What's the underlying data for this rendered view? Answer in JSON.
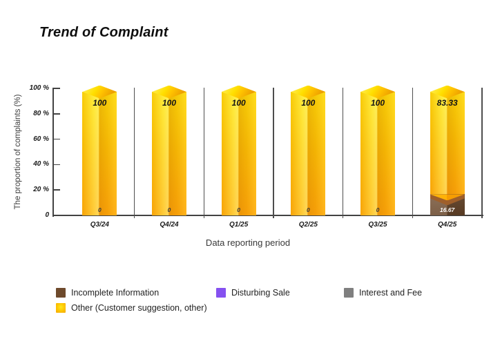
{
  "title": "Trend of Complaint",
  "chart_data": {
    "type": "bar",
    "variant": "3d-stacked-column",
    "title": "Trend of Complaint",
    "xlabel": "Data reporting period",
    "ylabel": "The proportion of complaints (%)",
    "ylim": [
      0,
      100
    ],
    "yticks": [
      100,
      80,
      60,
      40,
      20,
      0
    ],
    "ytick_labels": [
      "100 %",
      "80 %",
      "60 %",
      "40 %",
      "20 %",
      "0"
    ],
    "categories": [
      "Q3/24",
      "Q4/24",
      "Q1/25",
      "Q2/25",
      "Q3/25",
      "Q4/25"
    ],
    "series": [
      {
        "name": "Incomplete Information",
        "color": "#6e4a2c",
        "values": [
          0,
          0,
          0,
          0,
          0,
          16.67
        ]
      },
      {
        "name": "Disturbing Sale",
        "color": "#8551f0",
        "values": [
          0,
          0,
          0,
          0,
          0,
          0
        ]
      },
      {
        "name": "Interest and Fee",
        "color": "#7f7f7f",
        "values": [
          0,
          0,
          0,
          0,
          0,
          0
        ]
      },
      {
        "name": "Other (Customer suggestion, other)",
        "color": "#fcb800",
        "values": [
          100,
          100,
          100,
          100,
          100,
          83.33
        ]
      }
    ],
    "data_labels": {
      "top": [
        "100",
        "100",
        "100",
        "100",
        "100",
        "83.33"
      ],
      "bottom": [
        "0",
        "0",
        "0",
        "0",
        "0",
        "16.67"
      ]
    },
    "grid": "vertical-separators",
    "legend_position": "bottom"
  },
  "legend": {
    "items": [
      {
        "label": "Incomplete Information",
        "color": "#6e4a2c"
      },
      {
        "label": "Disturbing Sale",
        "color": "#8551f0"
      },
      {
        "label": "Interest and Fee",
        "color": "#7f7f7f"
      },
      {
        "label": "Other (Customer suggestion, other)",
        "color": "#fcb800"
      }
    ]
  },
  "colors": {
    "bar_highlight": "#ffe10a",
    "bar_shadow": "#ffa80a",
    "axis": "#424242"
  }
}
